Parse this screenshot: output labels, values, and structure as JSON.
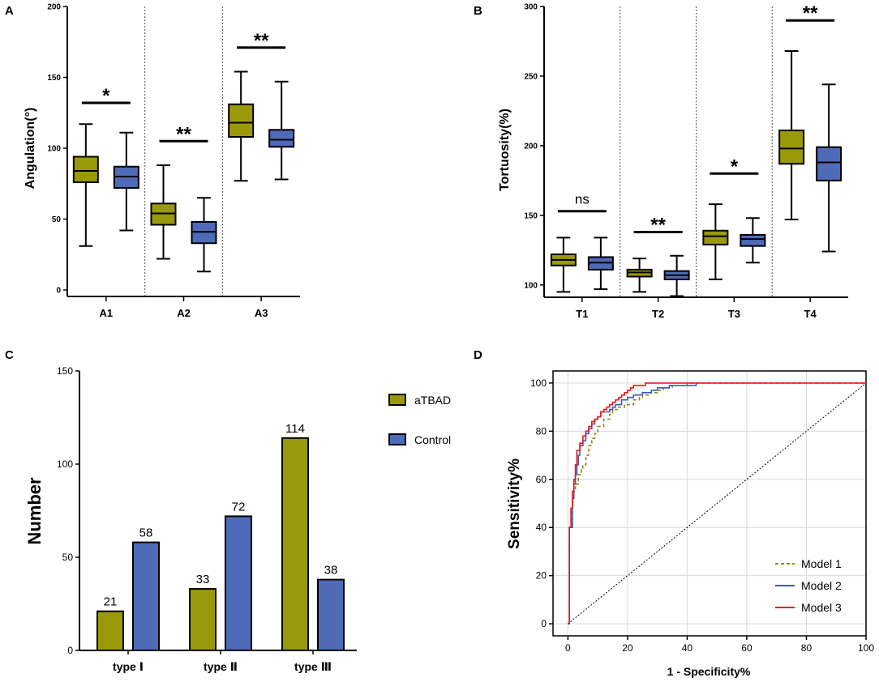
{
  "colors": {
    "atbad": "#99990a",
    "control": "#4f6ab7",
    "model1": "#8b8b16",
    "model2": "#3f5bb0",
    "model3": "#e8171d",
    "stroke": "#000000",
    "grid": "#d9d9d9"
  },
  "panels": {
    "A": {
      "letter": "A",
      "chart_data": {
        "type": "box",
        "title": "",
        "ylabel": "Angulation(°)",
        "ylim": [
          0,
          200
        ],
        "yticks": [
          0,
          50,
          100,
          150,
          200
        ],
        "groups": [
          "A1",
          "A2",
          "A3"
        ],
        "series": [
          "aTBAD",
          "Control"
        ],
        "boxes": [
          {
            "group": "A1",
            "series": "aTBAD",
            "min": 31,
            "q1": 76,
            "median": 84,
            "q3": 94,
            "max": 117
          },
          {
            "group": "A1",
            "series": "Control",
            "min": 42,
            "q1": 72,
            "median": 80,
            "q3": 87,
            "max": 111
          },
          {
            "group": "A2",
            "series": "aTBAD",
            "min": 22,
            "q1": 46,
            "median": 54,
            "q3": 61,
            "max": 88
          },
          {
            "group": "A2",
            "series": "Control",
            "min": 13,
            "q1": 33,
            "median": 41,
            "q3": 48,
            "max": 65
          },
          {
            "group": "A3",
            "series": "aTBAD",
            "min": 77,
            "q1": 108,
            "median": 118,
            "q3": 131,
            "max": 154
          },
          {
            "group": "A3",
            "series": "Control",
            "min": 78,
            "q1": 101,
            "median": 106,
            "q3": 113,
            "max": 147
          }
        ],
        "significance": [
          {
            "group": "A1",
            "label": "*",
            "y": 132
          },
          {
            "group": "A2",
            "label": "**",
            "y": 105
          },
          {
            "group": "A3",
            "label": "**",
            "y": 171
          }
        ]
      }
    },
    "B": {
      "letter": "B",
      "chart_data": {
        "type": "box",
        "title": "",
        "ylabel": "Tortuosity(%)",
        "ylim": [
          90,
          300
        ],
        "yticks": [
          100,
          150,
          200,
          250,
          300
        ],
        "groups": [
          "T1",
          "T2",
          "T3",
          "T4"
        ],
        "series": [
          "aTBAD",
          "Control"
        ],
        "boxes": [
          {
            "group": "T1",
            "series": "aTBAD",
            "min": 95,
            "q1": 114,
            "median": 118,
            "q3": 122,
            "max": 134
          },
          {
            "group": "T1",
            "series": "Control",
            "min": 97,
            "q1": 111,
            "median": 116,
            "q3": 120,
            "max": 134
          },
          {
            "group": "T2",
            "series": "aTBAD",
            "min": 95,
            "q1": 106,
            "median": 109,
            "q3": 111,
            "max": 119
          },
          {
            "group": "T2",
            "series": "Control",
            "min": 92,
            "q1": 104,
            "median": 107,
            "q3": 110,
            "max": 121
          },
          {
            "group": "T3",
            "series": "aTBAD",
            "min": 104,
            "q1": 129,
            "median": 135,
            "q3": 139,
            "max": 158
          },
          {
            "group": "T3",
            "series": "Control",
            "min": 116,
            "q1": 128,
            "median": 133,
            "q3": 136,
            "max": 148
          },
          {
            "group": "T4",
            "series": "aTBAD",
            "min": 147,
            "q1": 187,
            "median": 198,
            "q3": 211,
            "max": 268
          },
          {
            "group": "T4",
            "series": "Control",
            "min": 124,
            "q1": 175,
            "median": 188,
            "q3": 199,
            "max": 244
          }
        ],
        "significance": [
          {
            "group": "T1",
            "label": "ns",
            "y": 153
          },
          {
            "group": "T2",
            "label": "**",
            "y": 138
          },
          {
            "group": "T3",
            "label": "*",
            "y": 180
          },
          {
            "group": "T4",
            "label": "**",
            "y": 290
          }
        ]
      }
    },
    "C": {
      "letter": "C",
      "chart_data": {
        "type": "bar",
        "title": "",
        "ylabel": "Number",
        "ylim": [
          0,
          150
        ],
        "yticks": [
          0,
          50,
          100,
          150
        ],
        "categories": [
          "type Ⅰ",
          "type Ⅱ",
          "type Ⅲ"
        ],
        "series": [
          {
            "name": "aTBAD",
            "values": [
              21,
              33,
              114
            ]
          },
          {
            "name": "Control",
            "values": [
              58,
              72,
              38
            ]
          }
        ],
        "legend": {
          "position": "top-right",
          "entries": [
            "aTBAD",
            "Control"
          ]
        }
      }
    },
    "D": {
      "letter": "D",
      "chart_data": {
        "type": "line",
        "title": "",
        "xlabel": "1 - Specificity%",
        "ylabel": "Sensitivity%",
        "xlim": [
          -5,
          100
        ],
        "ylim": [
          -5,
          105
        ],
        "xticks": [
          0,
          20,
          40,
          60,
          80,
          100
        ],
        "yticks": [
          0,
          20,
          40,
          60,
          80,
          100
        ],
        "grid": true,
        "reference_line": {
          "x": [
            0,
            100
          ],
          "y": [
            0,
            100
          ],
          "style": "dotted"
        },
        "series": [
          {
            "name": "Model 1",
            "style": "dashed",
            "x": [
              0,
              0.5,
              1.5,
              1.5,
              2.5,
              3.5,
              4.5,
              5,
              6,
              7,
              8,
              9,
              10,
              12,
              14,
              15,
              17,
              19,
              20,
              22,
              24,
              25,
              27,
              30,
              32,
              35,
              40,
              100
            ],
            "y": [
              0,
              40,
              48,
              55,
              58,
              62,
              64,
              66,
              70,
              74,
              77,
              79,
              82,
              85,
              87,
              89,
              90,
              91,
              91,
              93,
              94,
              95,
              96,
              97,
              98,
              99,
              100,
              100
            ]
          },
          {
            "name": "Model 2",
            "style": "solid",
            "x": [
              0,
              0.5,
              0.5,
              1.5,
              2,
              2.5,
              3,
              3.5,
              4,
              5,
              6,
              7,
              8,
              9,
              10,
              11,
              12,
              14,
              15,
              16,
              18,
              20,
              22,
              25,
              28,
              30,
              34,
              38,
              43
            ],
            "y": [
              0,
              20,
              40,
              52,
              58,
              62,
              66,
              70,
              74,
              76,
              79,
              81,
              83,
              85,
              86,
              88,
              88,
              89,
              90,
              91,
              93,
              94,
              95,
              96,
              97,
              98,
              99,
              99,
              100
            ]
          },
          {
            "name": "Model 3",
            "style": "solid",
            "x": [
              0,
              0.5,
              1,
              1.5,
              2,
              2.5,
              3,
              4,
              5,
              6,
              7,
              8,
              9,
              10,
              11,
              12,
              13,
              14,
              15,
              16,
              17,
              18,
              19,
              20,
              21,
              22,
              24,
              26,
              100
            ],
            "y": [
              0,
              40,
              48,
              55,
              60,
              66,
              72,
              75,
              78,
              80,
              82,
              84,
              85,
              86,
              88,
              89,
              90,
              91,
              92,
              93,
              94,
              95,
              96,
              97,
              98,
              99,
              99,
              100,
              100
            ]
          }
        ],
        "legend": {
          "position": "bottom-right",
          "entries": [
            "Model 1",
            "Model 2",
            "Model 3"
          ]
        }
      }
    }
  }
}
